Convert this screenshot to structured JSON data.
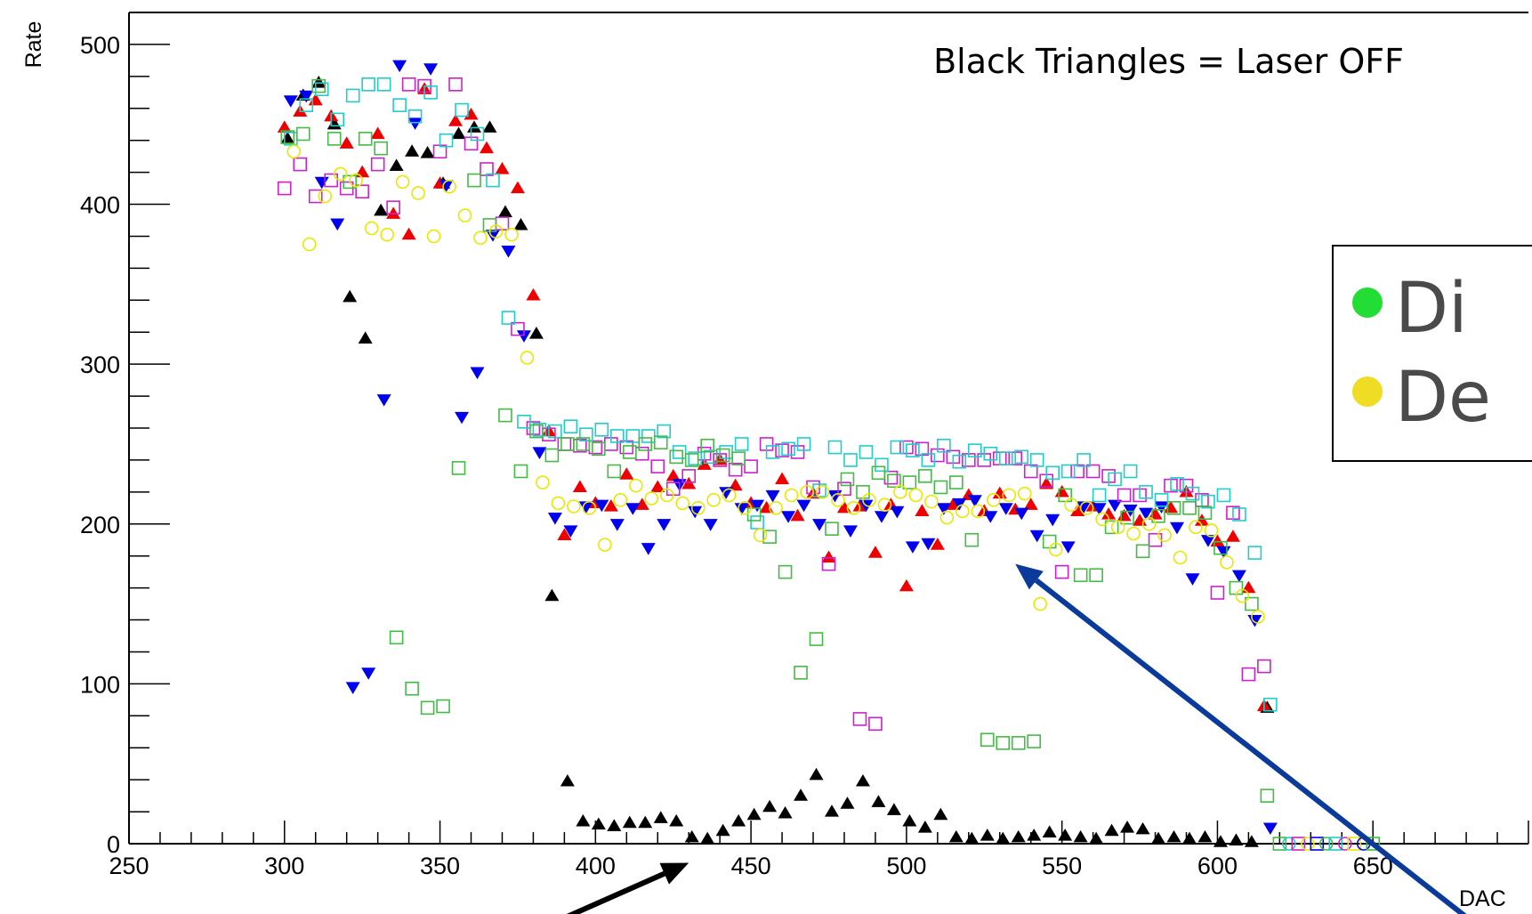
{
  "chart_data": {
    "type": "scatter",
    "title": "",
    "xlabel": "DAC",
    "ylabel": "Rate",
    "xlim": [
      250,
      700
    ],
    "ylim": [
      0,
      520
    ],
    "xticks": [
      "250",
      "300",
      "350",
      "400",
      "450",
      "500",
      "550",
      "600",
      "650"
    ],
    "yticks": [
      "0",
      "100",
      "200",
      "300",
      "400",
      "500"
    ],
    "annotation": "Black Triangles = Laser OFF",
    "legend": {
      "placement": "right",
      "entries": [
        {
          "label": "Di",
          "color": "#22dd33"
        },
        {
          "label": "De",
          "color": "#eedd22"
        }
      ]
    },
    "arrows": [
      {
        "color": "#000000",
        "from": [
          380,
          -55
        ],
        "to": [
          430,
          -12
        ]
      },
      {
        "color": "#0a3a9a",
        "from": [
          686,
          -55
        ],
        "to": [
          535,
          175
        ]
      }
    ],
    "series": [
      {
        "marker": "triangle-up-filled",
        "color": "#000000",
        "x": [
          301,
          306,
          311,
          316,
          321,
          326,
          331,
          336,
          341,
          346,
          351,
          356,
          361,
          366,
          371,
          376,
          381,
          386,
          391,
          396,
          401,
          406,
          411,
          416,
          421,
          426,
          431,
          436,
          441,
          446,
          451,
          456,
          461,
          466,
          471,
          476,
          481,
          486,
          491,
          496,
          501,
          506,
          511,
          516,
          521,
          526,
          531,
          536,
          541,
          546,
          551,
          556,
          561,
          566,
          571,
          576,
          581,
          586,
          591,
          596,
          601,
          606,
          611,
          616
        ],
        "y": [
          441,
          468,
          476,
          450,
          342,
          316,
          396,
          424,
          433,
          432,
          413,
          444,
          448,
          448,
          395,
          387,
          319,
          155,
          39,
          14,
          12,
          11,
          13,
          13,
          16,
          14,
          4,
          3,
          8,
          14,
          18,
          23,
          19,
          30,
          43,
          20,
          25,
          39,
          26,
          21,
          14,
          10,
          18,
          4,
          3,
          5,
          3,
          4,
          5,
          7,
          5,
          4,
          3,
          8,
          10,
          9,
          3,
          4,
          3,
          4,
          1,
          2,
          1,
          85
        ]
      },
      {
        "marker": "triangle-up-filled",
        "color": "#ee0000",
        "x": [
          300,
          305,
          310,
          315,
          320,
          325,
          330,
          335,
          340,
          345,
          350,
          355,
          360,
          365,
          370,
          375,
          380,
          385,
          390,
          395,
          400,
          405,
          410,
          415,
          420,
          425,
          430,
          435,
          440,
          445,
          450,
          455,
          460,
          465,
          470,
          475,
          480,
          485,
          490,
          495,
          500,
          505,
          510,
          515,
          520,
          525,
          530,
          535,
          540,
          545,
          550,
          555,
          560,
          565,
          570,
          575,
          580,
          585,
          590,
          595,
          600,
          605,
          610,
          615
        ],
        "y": [
          448,
          458,
          465,
          455,
          438,
          420,
          444,
          394,
          381,
          472,
          413,
          452,
          456,
          435,
          422,
          410,
          343,
          258,
          193,
          223,
          213,
          211,
          231,
          212,
          223,
          230,
          225,
          237,
          240,
          224,
          213,
          210,
          228,
          205,
          219,
          179,
          210,
          211,
          182,
          212,
          161,
          208,
          187,
          212,
          218,
          208,
          219,
          209,
          212,
          225,
          220,
          208,
          211,
          206,
          205,
          202,
          206,
          210,
          220,
          202,
          189,
          192,
          160,
          86
        ]
      },
      {
        "marker": "triangle-down-filled",
        "color": "#0000ee",
        "x": [
          302,
          307,
          312,
          317,
          322,
          327,
          332,
          337,
          342,
          347,
          352,
          357,
          362,
          367,
          372,
          377,
          382,
          387,
          392,
          397,
          402,
          407,
          412,
          417,
          422,
          427,
          432,
          437,
          442,
          447,
          452,
          457,
          462,
          467,
          472,
          477,
          482,
          487,
          492,
          497,
          502,
          507,
          512,
          517,
          522,
          527,
          532,
          537,
          542,
          547,
          552,
          557,
          562,
          567,
          572,
          577,
          582,
          587,
          592,
          597,
          602,
          607,
          612,
          617
        ],
        "y": [
          465,
          468,
          414,
          388,
          98,
          107,
          278,
          487,
          451,
          485,
          412,
          267,
          295,
          381,
          371,
          318,
          245,
          204,
          196,
          211,
          212,
          200,
          210,
          185,
          200,
          225,
          208,
          200,
          220,
          210,
          212,
          218,
          205,
          212,
          200,
          218,
          196,
          212,
          205,
          208,
          186,
          188,
          210,
          213,
          215,
          205,
          210,
          207,
          193,
          203,
          186,
          211,
          210,
          212,
          209,
          207,
          211,
          198,
          166,
          190,
          183,
          168,
          140,
          10
        ]
      },
      {
        "marker": "square-open",
        "color": "#cc22cc",
        "x": [
          300,
          305,
          310,
          315,
          320,
          325,
          330,
          335,
          340,
          345,
          350,
          355,
          360,
          365,
          370,
          375,
          380,
          385,
          390,
          395,
          400,
          405,
          410,
          415,
          420,
          425,
          430,
          435,
          440,
          445,
          450,
          455,
          460,
          465,
          470,
          475,
          480,
          485,
          490,
          495,
          500,
          505,
          510,
          515,
          520,
          525,
          530,
          535,
          540,
          545,
          550,
          555,
          560,
          565,
          570,
          575,
          580,
          585,
          590,
          595,
          600,
          605,
          610,
          615
        ],
        "y": [
          410,
          425,
          405,
          415,
          410,
          408,
          425,
          398,
          475,
          474,
          433,
          475,
          438,
          422,
          388,
          322,
          260,
          256,
          250,
          249,
          248,
          250,
          248,
          244,
          236,
          222,
          230,
          244,
          240,
          234,
          236,
          250,
          246,
          245,
          223,
          175,
          222,
          78,
          75,
          229,
          248,
          247,
          243,
          242,
          240,
          240,
          241,
          241,
          233,
          227,
          170,
          233,
          233,
          230,
          218,
          218,
          190,
          224,
          224,
          215,
          157,
          207,
          106,
          111
        ]
      },
      {
        "marker": "square-open",
        "color": "#22cccc",
        "x": [
          302,
          307,
          312,
          317,
          322,
          327,
          332,
          337,
          342,
          347,
          352,
          357,
          362,
          367,
          372,
          377,
          382,
          387,
          392,
          397,
          402,
          407,
          412,
          417,
          422,
          427,
          432,
          437,
          442,
          447,
          452,
          457,
          462,
          467,
          472,
          477,
          482,
          487,
          492,
          497,
          502,
          507,
          512,
          517,
          522,
          527,
          532,
          537,
          542,
          547,
          552,
          557,
          562,
          567,
          572,
          577,
          582,
          587,
          592,
          597,
          602,
          607,
          612,
          617
        ],
        "y": [
          441,
          462,
          472,
          453,
          468,
          475,
          475,
          462,
          455,
          470,
          440,
          459,
          444,
          415,
          329,
          264,
          259,
          258,
          261,
          256,
          259,
          255,
          255,
          255,
          258,
          245,
          241,
          242,
          245,
          250,
          201,
          245,
          247,
          250,
          221,
          248,
          240,
          245,
          237,
          248,
          246,
          240,
          249,
          239,
          246,
          244,
          241,
          242,
          240,
          232,
          233,
          240,
          218,
          228,
          233,
          220,
          215,
          225,
          219,
          214,
          218,
          206,
          182,
          87
        ]
      },
      {
        "marker": "square-open",
        "color": "#44bb44",
        "x": [
          301,
          306,
          311,
          316,
          321,
          326,
          331,
          336,
          341,
          346,
          351,
          356,
          361,
          366,
          371,
          376,
          381,
          386,
          391,
          396,
          401,
          406,
          411,
          416,
          421,
          426,
          431,
          436,
          441,
          446,
          451,
          456,
          461,
          466,
          471,
          476,
          481,
          486,
          491,
          496,
          501,
          506,
          511,
          516,
          521,
          526,
          531,
          536,
          541,
          546,
          551,
          556,
          561,
          566,
          571,
          576,
          581,
          586,
          591,
          596,
          601,
          606,
          611,
          616
        ],
        "y": [
          442,
          444,
          474,
          441,
          414,
          441,
          435,
          129,
          97,
          85,
          86,
          235,
          415,
          387,
          268,
          233,
          258,
          243,
          250,
          250,
          247,
          233,
          245,
          250,
          251,
          242,
          240,
          249,
          243,
          241,
          206,
          192,
          170,
          107,
          128,
          197,
          228,
          220,
          232,
          227,
          226,
          230,
          223,
          226,
          190,
          65,
          63,
          63,
          64,
          189,
          218,
          168,
          168,
          198,
          204,
          183,
          205,
          210,
          210,
          207,
          185,
          160,
          150,
          30
        ]
      },
      {
        "marker": "circle-open",
        "color": "#e8e800",
        "x": [
          303,
          308,
          313,
          318,
          323,
          328,
          333,
          338,
          343,
          348,
          353,
          358,
          363,
          368,
          373,
          378,
          383,
          388,
          393,
          398,
          403,
          408,
          413,
          418,
          423,
          428,
          433,
          438,
          443,
          448,
          453,
          458,
          463,
          468,
          473,
          478,
          483,
          488,
          493,
          498,
          503,
          508,
          513,
          518,
          523,
          528,
          533,
          538,
          543,
          548,
          553,
          558,
          563,
          568,
          573,
          578,
          583,
          588,
          593,
          598,
          603,
          608,
          613
        ],
        "y": [
          433,
          375,
          405,
          419,
          415,
          385,
          381,
          414,
          407,
          380,
          411,
          393,
          379,
          383,
          381,
          304,
          226,
          213,
          211,
          210,
          187,
          215,
          224,
          216,
          218,
          213,
          210,
          215,
          218,
          210,
          193,
          210,
          218,
          220,
          220,
          215,
          210,
          215,
          212,
          220,
          218,
          214,
          204,
          208,
          208,
          215,
          218,
          219,
          150,
          184,
          212,
          210,
          203,
          198,
          194,
          200,
          193,
          179,
          198,
          196,
          176,
          155,
          142
        ]
      },
      {
        "marker": "mixed-open",
        "color": "#44bb44",
        "x": [
          620,
          623,
          626,
          629,
          632,
          635,
          638,
          641,
          644,
          647,
          650
        ],
        "y": [
          0,
          0,
          0,
          0,
          0,
          0,
          0,
          0,
          0,
          0,
          0
        ]
      }
    ]
  }
}
